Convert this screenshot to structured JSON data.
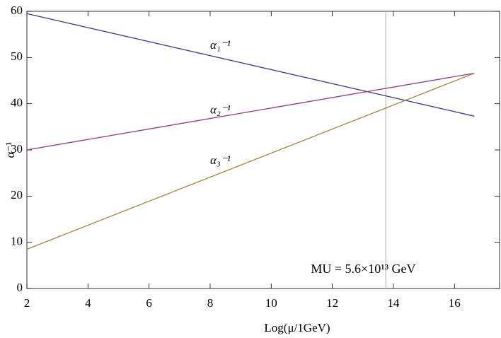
{
  "chart_data": {
    "type": "line",
    "xlabel": "Log(μ/1GeV)",
    "ylabel": "α⁻¹",
    "xlim": [
      2,
      17.5
    ],
    "xticks": [
      2,
      4,
      6,
      8,
      10,
      12,
      14,
      16
    ],
    "ylim": [
      0,
      60
    ],
    "yticks": [
      0,
      10,
      20,
      30,
      40,
      50,
      60
    ],
    "x": [
      2,
      16.65
    ],
    "series": [
      {
        "name": "α₁⁻¹",
        "color": "#3d3d8f",
        "values": [
          59.5,
          37.3
        ]
      },
      {
        "name": "α₂⁻¹",
        "color": "#8f3d7a",
        "values": [
          30,
          46.6
        ]
      },
      {
        "name": "α₃⁻¹",
        "color": "#9c8740",
        "values": [
          8.5,
          46.6
        ]
      }
    ],
    "series_label_positions": [
      [
        8,
        52.5
      ],
      [
        8,
        38.5
      ],
      [
        8,
        27.5
      ]
    ],
    "vline": 13.75,
    "vline_color": "#bbbbbb",
    "annotation": "MU = 5.6×10¹³ GeV",
    "annotation_position": [
      11.3,
      4
    ]
  }
}
